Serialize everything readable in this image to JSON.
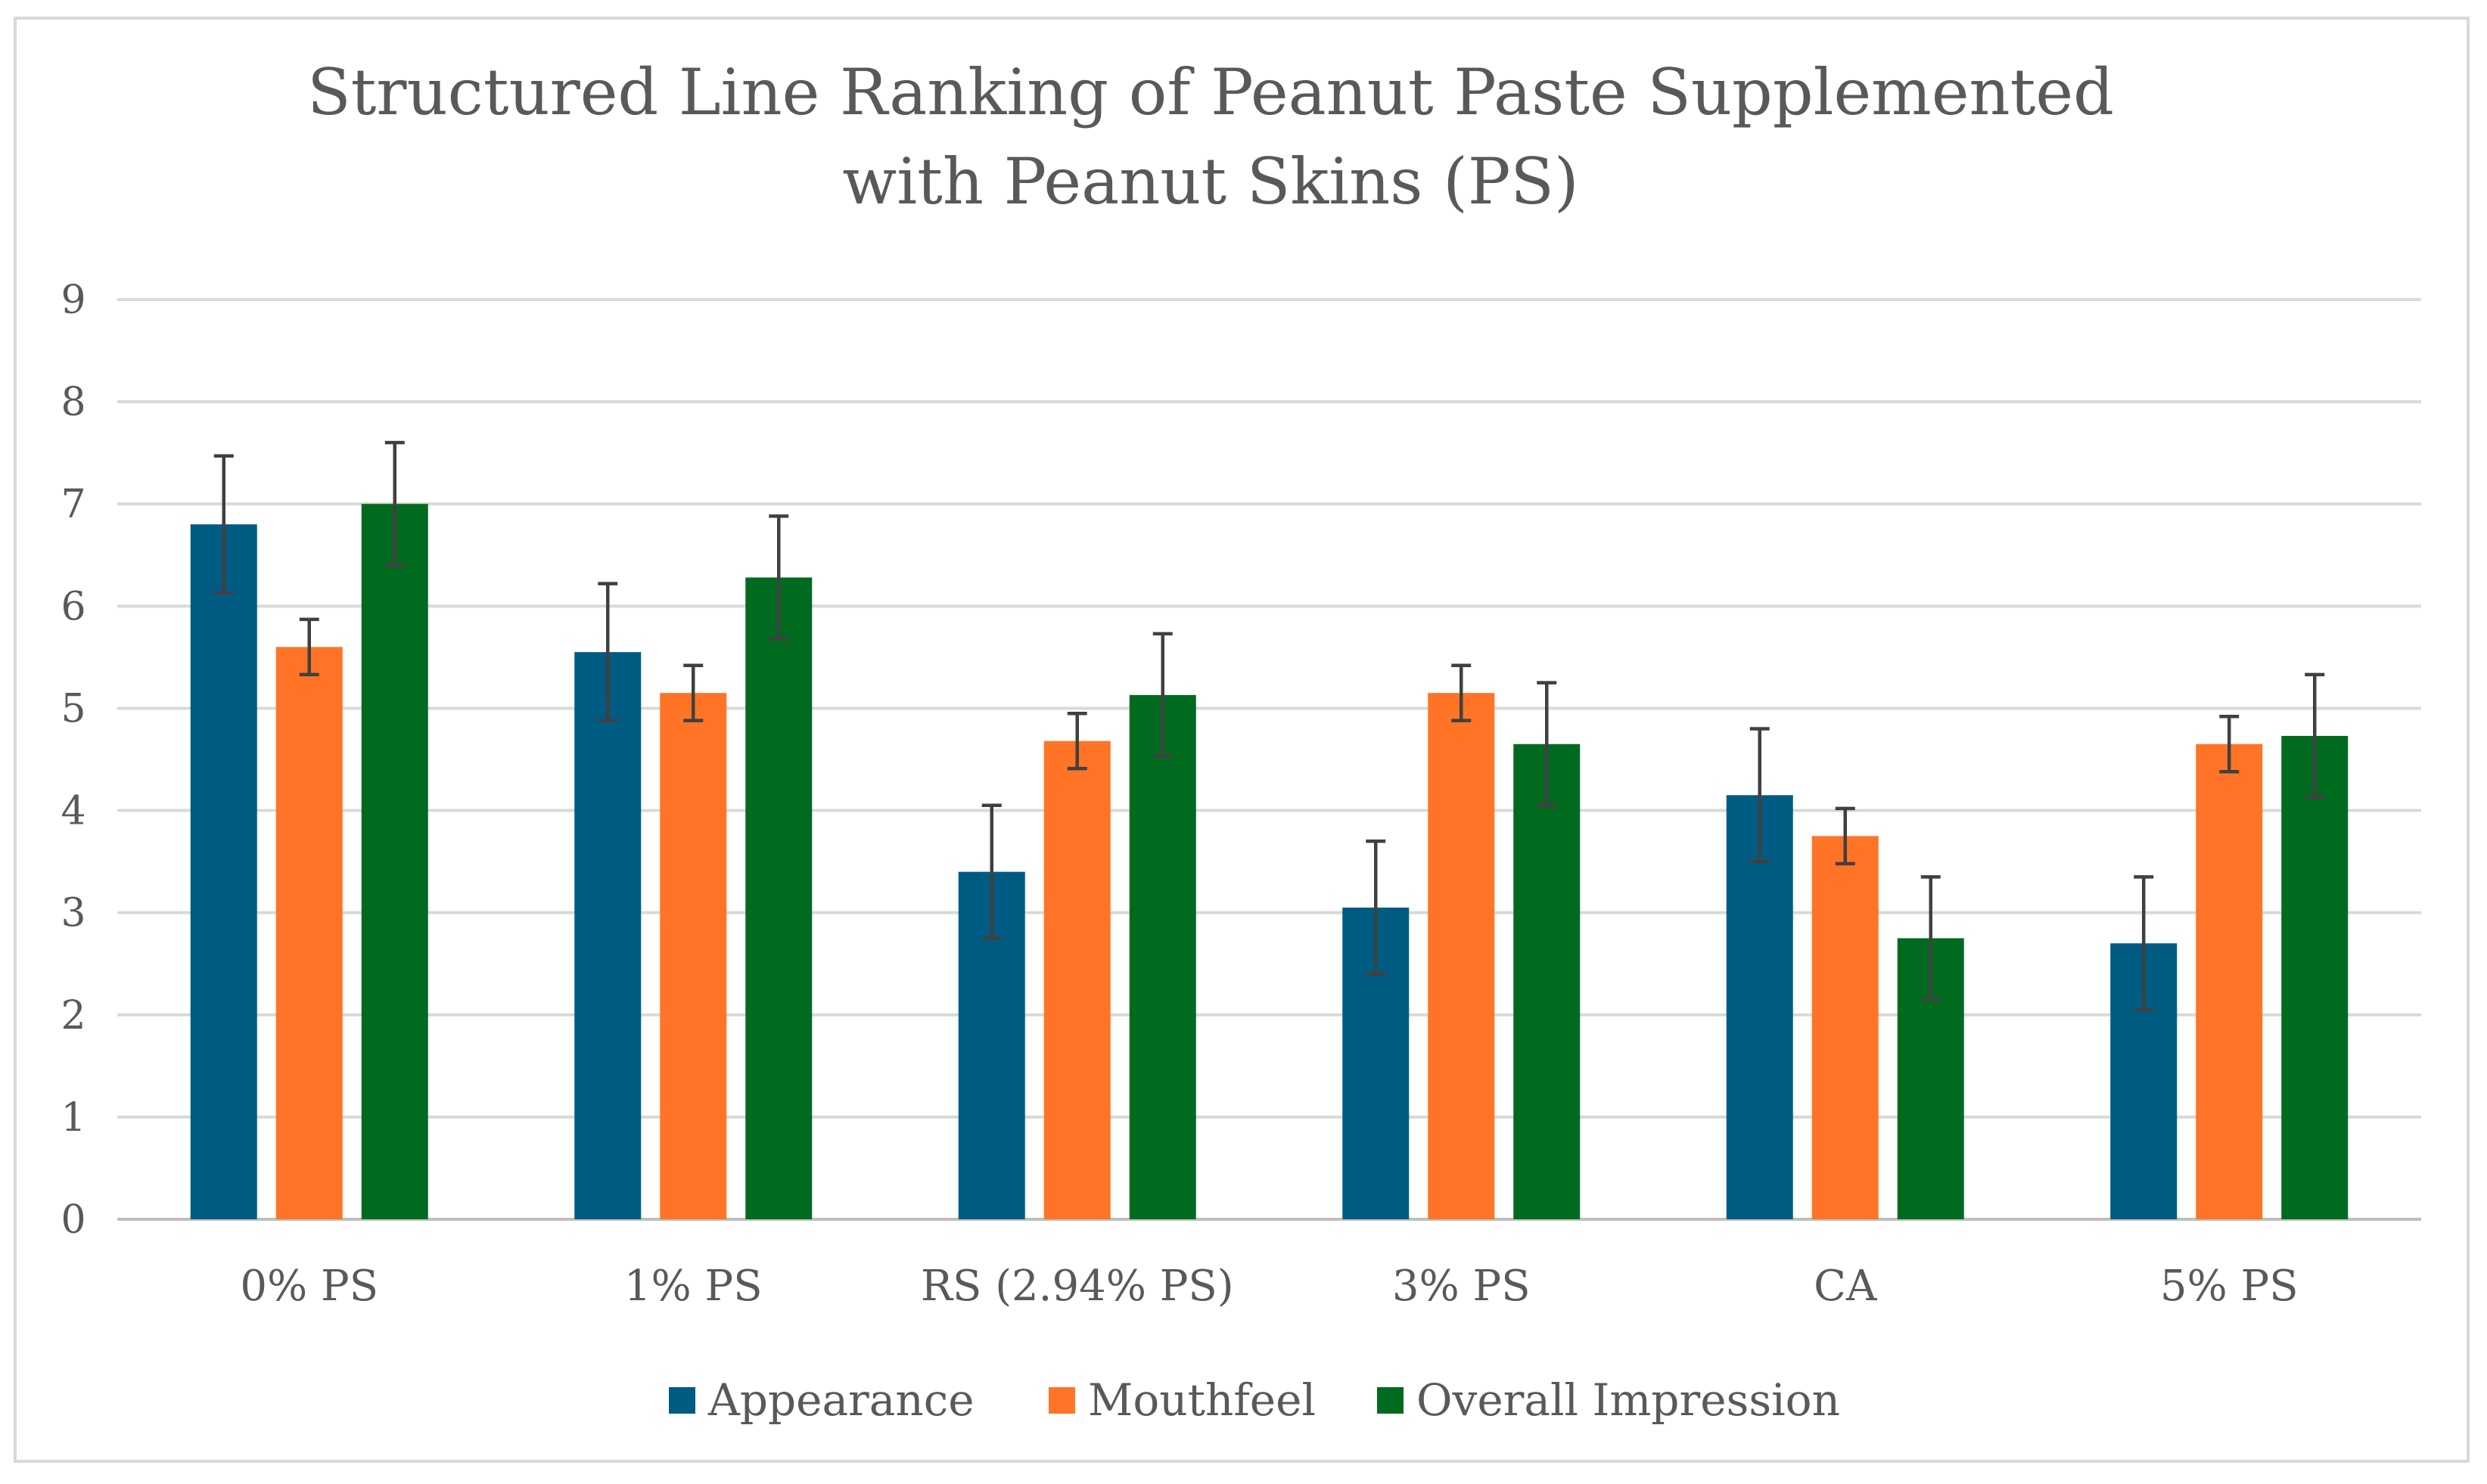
{
  "chart_data": {
    "type": "bar",
    "title_lines": [
      "Structured Line Ranking of Peanut Paste Supplemented",
      "with Peanut Skins (PS)"
    ],
    "categories": [
      "0% PS",
      "1% PS",
      "RS (2.94% PS)",
      "3% PS",
      "CA",
      "5% PS"
    ],
    "series": [
      {
        "name": "Appearance",
        "color": "#005b82",
        "values": [
          6.8,
          5.55,
          3.4,
          3.05,
          4.15,
          2.7
        ],
        "errors": [
          0.67,
          0.67,
          0.65,
          0.65,
          0.65,
          0.65
        ]
      },
      {
        "name": "Mouthfeel",
        "color": "#ff7427",
        "values": [
          5.6,
          5.15,
          4.68,
          5.15,
          3.75,
          4.65
        ],
        "errors": [
          0.27,
          0.27,
          0.27,
          0.27,
          0.27,
          0.27
        ]
      },
      {
        "name": "Overall Impression",
        "color": "#006b1f",
        "values": [
          7.0,
          6.28,
          5.13,
          4.65,
          2.75,
          4.73
        ],
        "errors": [
          0.6,
          0.6,
          0.6,
          0.6,
          0.6,
          0.6
        ]
      }
    ],
    "xlabel": "",
    "ylabel": "",
    "ylim": [
      0,
      9
    ],
    "yticks": [
      "0",
      "1",
      "2",
      "3",
      "4",
      "5",
      "6",
      "7",
      "8",
      "9"
    ],
    "grid": true,
    "legend": "bottom-center"
  }
}
